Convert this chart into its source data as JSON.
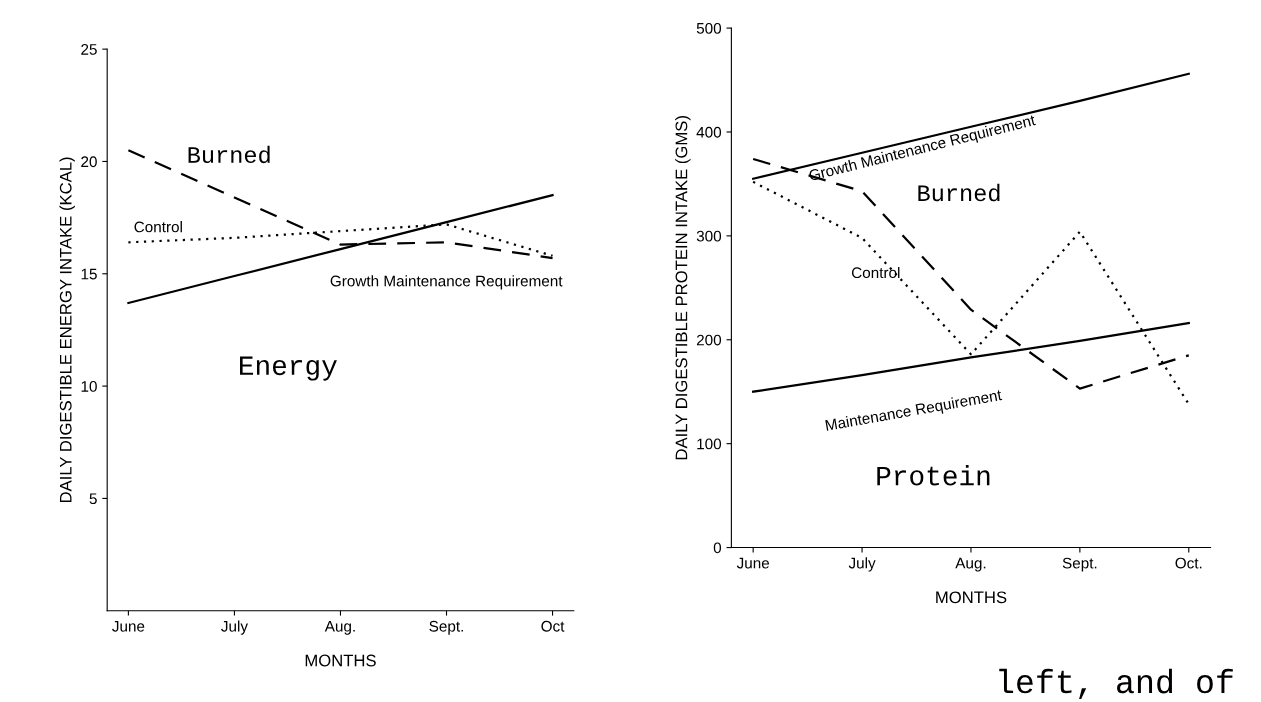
{
  "chart_data": [
    {
      "type": "line",
      "xlabel": "MONTHS",
      "ylabel": "DAILY DIGESTIBLE ENERGY INTAKE (KCAL)",
      "categories": [
        "June",
        "July",
        "Aug.",
        "Sept.",
        "Oct"
      ],
      "ylim": [
        0,
        25
      ],
      "yticks": [
        5,
        10,
        15,
        20,
        25
      ],
      "grid": false,
      "legend": false,
      "marker": "none",
      "series": [
        {
          "name": "Burned",
          "color": "#000000",
          "line_style": "dashed",
          "values": [
            20.5,
            18.4,
            16.3,
            16.4,
            15.7
          ]
        },
        {
          "name": "Control",
          "color": "#000000",
          "line_style": "dotted",
          "values": [
            16.4,
            16.6,
            16.9,
            17.2,
            15.8
          ]
        },
        {
          "name": "Growth Maintenance Requirement",
          "color": "#000000",
          "line_style": "solid",
          "values": [
            13.7,
            14.9,
            16.1,
            17.3,
            18.5
          ]
        }
      ],
      "annotations": [
        "Energy"
      ]
    },
    {
      "type": "line",
      "xlabel": "MONTHS",
      "ylabel": "DAILY DIGESTIBLE PROTEIN INTAKE (GMS)",
      "categories": [
        "June",
        "July",
        "Aug.",
        "Sept.",
        "Oct."
      ],
      "ylim": [
        0,
        500
      ],
      "yticks": [
        0,
        100,
        200,
        300,
        400,
        500
      ],
      "grid": false,
      "legend": false,
      "marker": "none",
      "series": [
        {
          "name": "Growth Maintenance Requirement",
          "color": "#000000",
          "line_style": "solid",
          "values": [
            355,
            380,
            405,
            430,
            456
          ]
        },
        {
          "name": "Burned",
          "color": "#000000",
          "line_style": "dashed",
          "values": [
            374,
            343,
            229,
            153,
            185
          ]
        },
        {
          "name": "Control",
          "color": "#000000",
          "line_style": "dotted",
          "values": [
            352,
            298,
            186,
            304,
            138
          ]
        },
        {
          "name": "Maintenance Requirement",
          "color": "#000000",
          "line_style": "solid",
          "values": [
            150,
            166,
            183,
            199,
            216
          ]
        }
      ],
      "annotations": [
        "Protein",
        "left, and of"
      ]
    }
  ]
}
